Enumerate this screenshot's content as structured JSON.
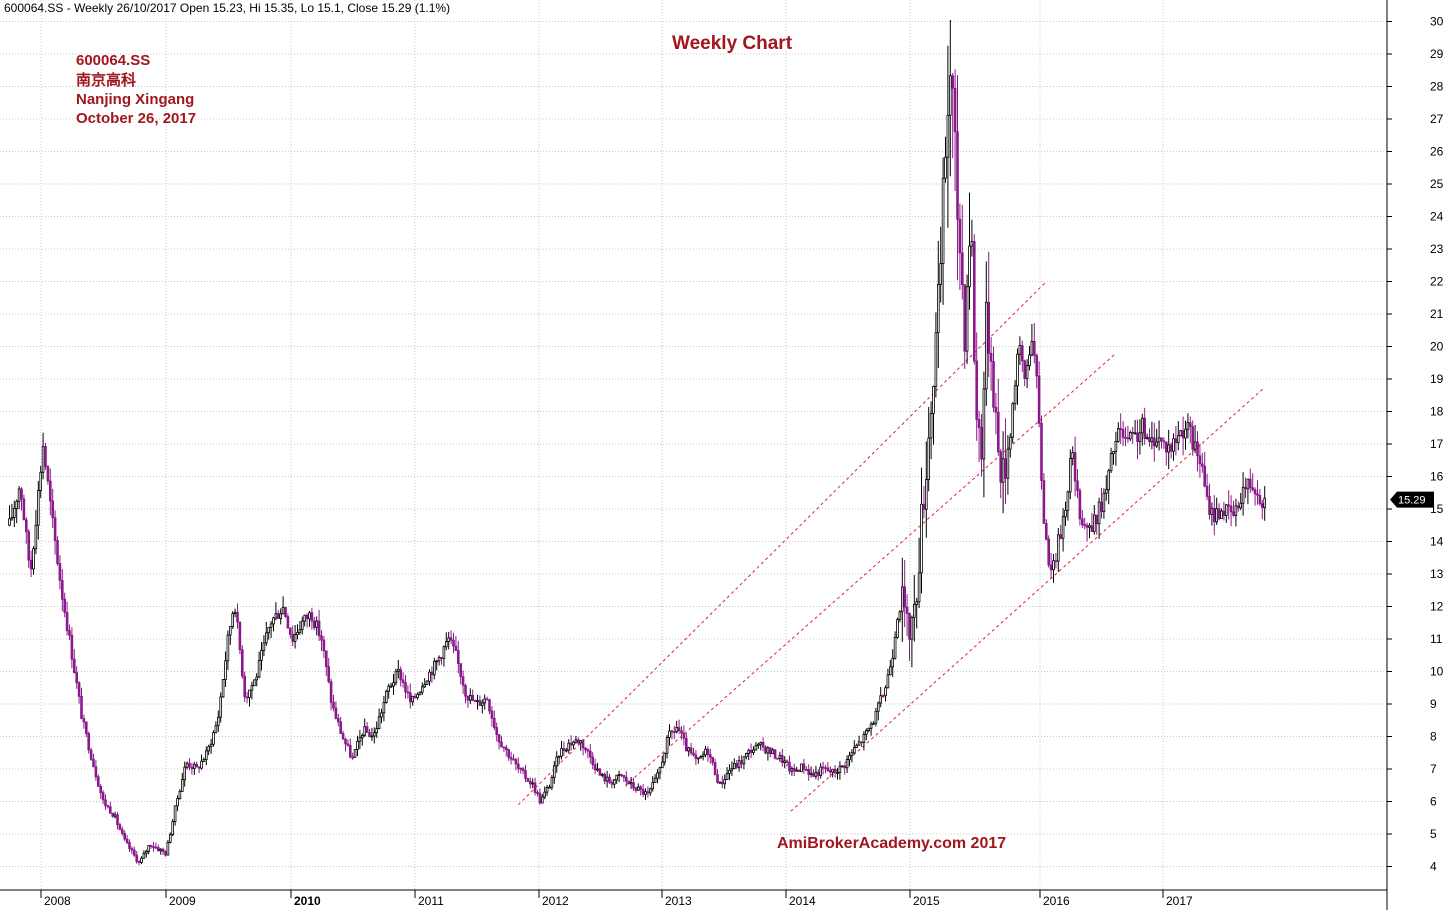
{
  "header": {
    "info_line": "600064.SS - Weekly 26/10/2017 Open 15.23, Hi 15.35, Lo 15.1, Close 15.29 (1.1%)"
  },
  "annotations": {
    "title": "Weekly Chart",
    "symbol": "600064.SS",
    "name_cn": "南京高科",
    "name_en": "Nanjing Xingang",
    "date": "October 26, 2017",
    "watermark": "AmiBrokerAcademy.com 2017"
  },
  "colors": {
    "annotation": "#a0171e",
    "watermark": "#a0171e",
    "up_candle": "#000000",
    "down_candle": "#8a1a8a",
    "trendline": "#d8263a",
    "grid": "#c8c8c8",
    "price_tag_bg": "#000000",
    "price_tag_text": "#ffffff"
  },
  "chart_data": {
    "type": "candlestick",
    "title": "Weekly Chart",
    "x_axis": {
      "type": "date",
      "ticks": [
        "2008",
        "2009",
        "2010",
        "2011",
        "2012",
        "2013",
        "2014",
        "2015",
        "2016",
        "2017"
      ],
      "bold_tick": "2010"
    },
    "y_axis": {
      "position": "right",
      "ylim": [
        3.4,
        30.6
      ],
      "ticks": [
        4,
        5,
        6,
        7,
        8,
        9,
        10,
        11,
        12,
        13,
        14,
        15,
        16,
        17,
        18,
        19,
        20,
        21,
        22,
        23,
        24,
        25,
        26,
        27,
        28,
        29,
        30
      ]
    },
    "grid": true,
    "last_close": 15.29,
    "last_bar": {
      "date": "2017-10-26",
      "open": 15.23,
      "high": 15.35,
      "low": 15.1,
      "close": 15.29,
      "change_pct": 1.1
    },
    "price_path": [
      [
        "2007-10-01",
        14.5
      ],
      [
        "2007-11-01",
        15.8
      ],
      [
        "2007-12-01",
        13.0
      ],
      [
        "2008-01-07",
        17.0
      ],
      [
        "2008-02-01",
        14.8
      ],
      [
        "2008-03-01",
        12.5
      ],
      [
        "2008-04-01",
        10.5
      ],
      [
        "2008-05-01",
        8.5
      ],
      [
        "2008-06-01",
        7.2
      ],
      [
        "2008-07-01",
        6.0
      ],
      [
        "2008-08-01",
        5.6
      ],
      [
        "2008-09-01",
        4.8
      ],
      [
        "2008-10-15",
        4.1
      ],
      [
        "2008-11-15",
        4.7
      ],
      [
        "2009-01-01",
        4.4
      ],
      [
        "2009-02-01",
        6.0
      ],
      [
        "2009-03-01",
        7.2
      ],
      [
        "2009-04-01",
        7.0
      ],
      [
        "2009-05-01",
        7.5
      ],
      [
        "2009-06-01",
        8.5
      ],
      [
        "2009-07-01",
        11.0
      ],
      [
        "2009-07-20",
        12.2
      ],
      [
        "2009-08-20",
        9.2
      ],
      [
        "2009-09-20",
        9.8
      ],
      [
        "2009-11-01",
        11.5
      ],
      [
        "2009-12-10",
        12.0
      ],
      [
        "2010-01-05",
        11.0
      ],
      [
        "2010-02-01",
        11.5
      ],
      [
        "2010-03-01",
        11.8
      ],
      [
        "2010-04-01",
        11.0
      ],
      [
        "2010-05-01",
        9.0
      ],
      [
        "2010-06-01",
        8.0
      ],
      [
        "2010-07-01",
        7.3
      ],
      [
        "2010-08-01",
        8.2
      ],
      [
        "2010-09-01",
        8.0
      ],
      [
        "2010-10-15",
        9.5
      ],
      [
        "2010-11-15",
        10.0
      ],
      [
        "2010-12-20",
        9.0
      ],
      [
        "2011-02-01",
        9.8
      ],
      [
        "2011-03-01",
        10.2
      ],
      [
        "2011-04-10",
        11.0
      ],
      [
        "2011-05-01",
        10.5
      ],
      [
        "2011-06-01",
        9.3
      ],
      [
        "2011-07-01",
        9.0
      ],
      [
        "2011-08-01",
        9.2
      ],
      [
        "2011-09-01",
        8.0
      ],
      [
        "2011-10-01",
        7.5
      ],
      [
        "2011-11-01",
        7.0
      ],
      [
        "2011-12-15",
        6.5
      ],
      [
        "2012-01-05",
        6.0
      ],
      [
        "2012-02-01",
        6.5
      ],
      [
        "2012-03-01",
        7.5
      ],
      [
        "2012-04-01",
        7.8
      ],
      [
        "2012-05-01",
        7.9
      ],
      [
        "2012-06-01",
        7.4
      ],
      [
        "2012-07-01",
        6.8
      ],
      [
        "2012-08-01",
        6.6
      ],
      [
        "2012-09-01",
        6.8
      ],
      [
        "2012-10-01",
        6.5
      ],
      [
        "2012-11-20",
        6.2
      ],
      [
        "2012-12-20",
        6.8
      ],
      [
        "2013-01-20",
        8.0
      ],
      [
        "2013-02-15",
        8.3
      ],
      [
        "2013-03-15",
        7.6
      ],
      [
        "2013-04-15",
        7.2
      ],
      [
        "2013-05-15",
        7.6
      ],
      [
        "2013-06-20",
        6.5
      ],
      [
        "2013-07-20",
        7.0
      ],
      [
        "2013-08-20",
        7.2
      ],
      [
        "2013-09-20",
        7.6
      ],
      [
        "2013-10-20",
        7.7
      ],
      [
        "2013-11-20",
        7.5
      ],
      [
        "2013-12-20",
        7.3
      ],
      [
        "2014-01-20",
        6.9
      ],
      [
        "2014-02-20",
        7.1
      ],
      [
        "2014-03-20",
        6.8
      ],
      [
        "2014-04-20",
        7.0
      ],
      [
        "2014-05-20",
        6.9
      ],
      [
        "2014-06-20",
        7.1
      ],
      [
        "2014-07-20",
        7.6
      ],
      [
        "2014-08-20",
        8.0
      ],
      [
        "2014-09-20",
        8.6
      ],
      [
        "2014-10-20",
        9.5
      ],
      [
        "2014-11-10",
        10.5
      ],
      [
        "2014-11-25",
        11.8
      ],
      [
        "2014-12-10",
        12.2
      ],
      [
        "2014-12-25",
        11.2
      ],
      [
        "2015-01-15",
        11.8
      ],
      [
        "2015-02-01",
        14.5
      ],
      [
        "2015-02-20",
        17.0
      ],
      [
        "2015-03-10",
        19.5
      ],
      [
        "2015-03-25",
        21.5
      ],
      [
        "2015-04-10",
        26.0
      ],
      [
        "2015-04-25",
        28.8
      ],
      [
        "2015-05-10",
        25.0
      ],
      [
        "2015-05-25",
        22.5
      ],
      [
        "2015-06-05",
        20.5
      ],
      [
        "2015-06-20",
        24.5
      ],
      [
        "2015-07-05",
        18.0
      ],
      [
        "2015-07-20",
        17.0
      ],
      [
        "2015-08-05",
        21.0
      ],
      [
        "2015-08-20",
        19.5
      ],
      [
        "2015-09-05",
        16.8
      ],
      [
        "2015-09-20",
        16.0
      ],
      [
        "2015-10-10",
        17.5
      ],
      [
        "2015-11-01",
        20.0
      ],
      [
        "2015-11-20",
        19.0
      ],
      [
        "2015-12-10",
        20.5
      ],
      [
        "2015-12-25",
        18.5
      ],
      [
        "2016-01-10",
        15.0
      ],
      [
        "2016-01-25",
        13.5
      ],
      [
        "2016-02-10",
        13.2
      ],
      [
        "2016-02-25",
        14.0
      ],
      [
        "2016-03-15",
        15.0
      ],
      [
        "2016-04-05",
        16.8
      ],
      [
        "2016-04-25",
        15.0
      ],
      [
        "2016-05-15",
        14.5
      ],
      [
        "2016-06-05",
        14.4
      ],
      [
        "2016-06-25",
        15.0
      ],
      [
        "2016-07-15",
        15.5
      ],
      [
        "2016-08-05",
        16.8
      ],
      [
        "2016-08-25",
        17.4
      ],
      [
        "2016-09-15",
        17.0
      ],
      [
        "2016-10-10",
        17.2
      ],
      [
        "2016-11-01",
        17.5
      ],
      [
        "2016-11-20",
        16.9
      ],
      [
        "2016-12-10",
        17.3
      ],
      [
        "2017-01-01",
        17.0
      ],
      [
        "2017-01-25",
        16.9
      ],
      [
        "2017-02-15",
        17.3
      ],
      [
        "2017-03-10",
        17.6
      ],
      [
        "2017-03-30",
        17.0
      ],
      [
        "2017-04-20",
        16.5
      ],
      [
        "2017-05-10",
        15.2
      ],
      [
        "2017-05-30",
        14.8
      ],
      [
        "2017-06-20",
        15.0
      ],
      [
        "2017-07-10",
        14.9
      ],
      [
        "2017-07-30",
        14.8
      ],
      [
        "2017-08-20",
        15.6
      ],
      [
        "2017-09-10",
        15.8
      ],
      [
        "2017-09-30",
        15.7
      ],
      [
        "2017-10-15",
        15.3
      ],
      [
        "2017-10-26",
        15.29
      ]
    ],
    "trendlines": [
      {
        "start": [
          "2011-11-01",
          5.9
        ],
        "end": [
          "2016-01-20",
          22.0
        ]
      },
      {
        "start": [
          "2012-09-15",
          6.5
        ],
        "end": [
          "2016-08-15",
          19.8
        ]
      },
      {
        "start": [
          "2014-01-15",
          5.7
        ],
        "end": [
          "2017-10-20",
          18.7
        ]
      }
    ]
  }
}
